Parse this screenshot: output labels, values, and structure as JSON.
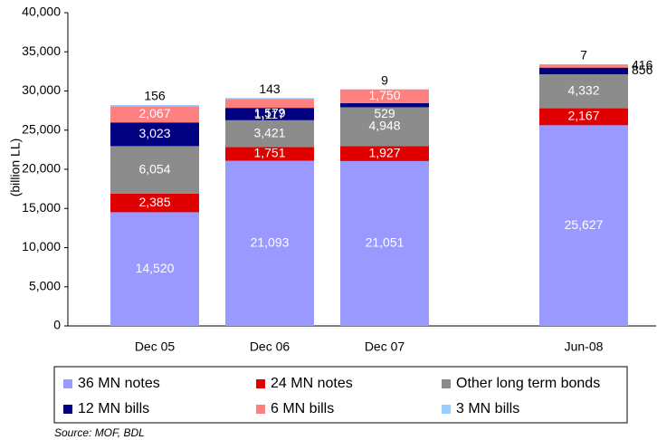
{
  "chart_data": {
    "type": "stacked_bar",
    "y_label": "(billion LL)",
    "source": "Source: MOF, BDL",
    "categories": [
      "Dec 05",
      "Dec 06",
      "Dec 07",
      "Jun-08"
    ],
    "series": [
      {
        "name": "36 MN notes",
        "color": "#9999ff",
        "values": [
          14520,
          21093,
          21051,
          25627
        ],
        "value_labels": [
          "14,520",
          "21,093",
          "21,051",
          "25,627"
        ]
      },
      {
        "name": "24 MN notes",
        "color": "#e00000",
        "values": [
          2385,
          1751,
          1927,
          2167
        ],
        "value_labels": [
          "2,385",
          "1,751",
          "1,927",
          "2,167"
        ]
      },
      {
        "name": "Other long term bonds",
        "color": "#8c8c8c",
        "values": [
          6054,
          3421,
          4948,
          4332
        ],
        "value_labels": [
          "6,054",
          "3,421",
          "4,948",
          "4,332"
        ]
      },
      {
        "name": "12 MN bills",
        "color": "#000080",
        "values": [
          3023,
          1579,
          529,
          856
        ],
        "value_labels": [
          "3,023",
          "1,579",
          "529",
          "856"
        ]
      },
      {
        "name": "6 MN bills",
        "color": "#ff8080",
        "values": [
          2067,
          1117,
          1750,
          416
        ],
        "value_labels": [
          "2,067",
          "1,117",
          "1,750",
          "416"
        ]
      },
      {
        "name": "3 MN bills",
        "color": "#99ccff",
        "values": [
          156,
          143,
          9,
          7
        ],
        "value_labels": [
          "156",
          "143",
          "9",
          "7"
        ]
      }
    ],
    "ylim": [
      0,
      40000
    ],
    "yticks": [
      0,
      {
        "value": 5000,
        "label": "5,000"
      },
      {
        "value": 10000,
        "label": "10,000"
      },
      {
        "value": 15000,
        "label": "15,000"
      },
      {
        "value": 20000,
        "label": "20,000"
      },
      {
        "value": 25000,
        "label": "25,000"
      },
      {
        "value": 30000,
        "label": "30,000"
      },
      {
        "value": 35000,
        "label": "35,000"
      },
      {
        "value": 40000,
        "label": "40,000"
      }
    ],
    "legend": "bottom"
  }
}
